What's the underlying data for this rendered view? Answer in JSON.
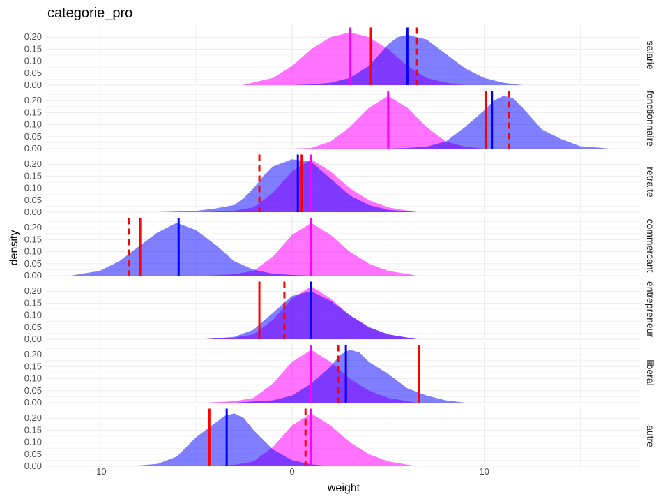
{
  "chart_data": {
    "type": "area",
    "title": "categorie_pro",
    "xlabel": "weight",
    "ylabel": "density",
    "xlim": [
      -12.8,
      18.1
    ],
    "ylim": [
      0,
      0.25
    ],
    "x_ticks": [
      -10,
      0,
      10
    ],
    "x_tick_labels": [
      "-10",
      "0",
      "10"
    ],
    "y_ticks": [
      0.0,
      0.05,
      0.1,
      0.15,
      0.2
    ],
    "y_tick_labels": [
      "0.00",
      "0.05",
      "0.10",
      "0.15",
      "0.20"
    ],
    "grid": true,
    "colors": {
      "pink": "#ff00ff",
      "blue": "#0000ff",
      "red": "#ff0000",
      "grid": "#ebebeb"
    },
    "panels": [
      {
        "label": "salarie",
        "pink_density": {
          "x": [
            -2.6,
            -1.0,
            0.0,
            1.0,
            2.0,
            3.0,
            4.0,
            5.0,
            6.0,
            7.0,
            8.0,
            9.0
          ],
          "y": [
            0.0,
            0.03,
            0.08,
            0.15,
            0.2,
            0.22,
            0.2,
            0.15,
            0.08,
            0.03,
            0.01,
            0.0
          ]
        },
        "blue_density": {
          "x": [
            0.0,
            1.0,
            2.0,
            3.0,
            4.0,
            5.0,
            5.5,
            6.0,
            6.5,
            7.0,
            7.5,
            8.0,
            9.0,
            10.0,
            11.0,
            12.0
          ],
          "y": [
            0.0,
            0.003,
            0.01,
            0.03,
            0.08,
            0.17,
            0.2,
            0.21,
            0.2,
            0.19,
            0.16,
            0.13,
            0.07,
            0.03,
            0.01,
            0.0
          ]
        },
        "pink_line": 3.0,
        "blue_line": 6.0,
        "red_solid": 4.1,
        "red_dashed": 6.5
      },
      {
        "label": "fonctionnaire",
        "pink_density": {
          "x": [
            0.0,
            1.0,
            2.0,
            3.0,
            4.0,
            5.0,
            6.0,
            7.0,
            8.0,
            9.0,
            10.0
          ],
          "y": [
            0.0,
            0.003,
            0.03,
            0.09,
            0.17,
            0.22,
            0.17,
            0.09,
            0.03,
            0.008,
            0.0
          ]
        },
        "blue_density": {
          "x": [
            5.0,
            6.0,
            7.0,
            8.0,
            9.0,
            10.0,
            10.5,
            11.0,
            11.5,
            12.0,
            13.0,
            14.0,
            15.0,
            16.0,
            16.5
          ],
          "y": [
            0.0,
            0.003,
            0.008,
            0.03,
            0.09,
            0.16,
            0.2,
            0.22,
            0.21,
            0.17,
            0.08,
            0.04,
            0.01,
            0.004,
            0.0
          ]
        },
        "pink_line": 5.0,
        "blue_line": 10.4,
        "red_solid": 10.1,
        "red_dashed": 11.3
      },
      {
        "label": "retraite",
        "pink_density": {
          "x": [
            -4.5,
            -3.0,
            -2.0,
            -1.0,
            0.0,
            1.0,
            2.0,
            3.0,
            4.0,
            5.0,
            6.5
          ],
          "y": [
            0.0,
            0.006,
            0.02,
            0.08,
            0.17,
            0.22,
            0.17,
            0.1,
            0.05,
            0.02,
            0.0
          ]
        },
        "blue_density": {
          "x": [
            -7.0,
            -5.0,
            -4.0,
            -3.0,
            -2.5,
            -2.0,
            -1.5,
            -1.0,
            0.0,
            1.0,
            2.0,
            3.0,
            4.0,
            5.0,
            6.5
          ],
          "y": [
            0.0,
            0.005,
            0.015,
            0.03,
            0.06,
            0.1,
            0.15,
            0.19,
            0.22,
            0.21,
            0.14,
            0.07,
            0.03,
            0.01,
            0.0
          ]
        },
        "pink_line": 1.0,
        "blue_line": 0.3,
        "red_solid": 0.5,
        "red_dashed": -1.7
      },
      {
        "label": "commercant",
        "pink_density": {
          "x": [
            -4.5,
            -3.0,
            -2.0,
            -1.0,
            0.0,
            1.0,
            2.0,
            3.0,
            4.0,
            5.0,
            6.5
          ],
          "y": [
            0.0,
            0.006,
            0.02,
            0.08,
            0.17,
            0.22,
            0.17,
            0.1,
            0.05,
            0.02,
            0.0
          ]
        },
        "blue_density": {
          "x": [
            -11.5,
            -10.0,
            -9.0,
            -8.0,
            -7.0,
            -6.0,
            -5.0,
            -4.0,
            -3.0,
            -2.0,
            -1.0,
            0.0,
            1.0
          ],
          "y": [
            0.0,
            0.02,
            0.06,
            0.12,
            0.18,
            0.22,
            0.19,
            0.13,
            0.06,
            0.025,
            0.008,
            0.003,
            0.0
          ]
        },
        "pink_line": 1.0,
        "blue_line": -5.9,
        "red_solid": -7.9,
        "red_dashed": -8.5
      },
      {
        "label": "entrepreneur",
        "pink_density": {
          "x": [
            -4.5,
            -3.0,
            -2.0,
            -1.0,
            0.0,
            1.0,
            2.0,
            3.0,
            4.0,
            5.0,
            6.5
          ],
          "y": [
            0.0,
            0.006,
            0.02,
            0.08,
            0.17,
            0.22,
            0.17,
            0.1,
            0.05,
            0.02,
            0.0
          ]
        },
        "blue_density": {
          "x": [
            -4.5,
            -3.0,
            -2.0,
            -1.0,
            0.0,
            1.0,
            2.0,
            3.0,
            4.0,
            5.0,
            6.5
          ],
          "y": [
            0.0,
            0.01,
            0.04,
            0.11,
            0.18,
            0.2,
            0.16,
            0.1,
            0.05,
            0.02,
            0.0
          ]
        },
        "pink_line": 1.0,
        "blue_line": 1.0,
        "red_solid": -1.7,
        "red_dashed": -0.4
      },
      {
        "label": "liberal",
        "pink_density": {
          "x": [
            -4.5,
            -3.0,
            -2.0,
            -1.0,
            0.0,
            1.0,
            2.0,
            3.0,
            4.0,
            5.0,
            6.5
          ],
          "y": [
            0.0,
            0.006,
            0.02,
            0.08,
            0.17,
            0.22,
            0.17,
            0.1,
            0.05,
            0.02,
            0.0
          ]
        },
        "blue_density": {
          "x": [
            -3.0,
            -2.0,
            -1.0,
            0.0,
            1.0,
            2.0,
            2.5,
            3.0,
            3.5,
            4.0,
            5.0,
            6.0,
            7.0,
            8.0,
            9.0
          ],
          "y": [
            0.0,
            0.005,
            0.01,
            0.03,
            0.08,
            0.15,
            0.2,
            0.22,
            0.21,
            0.17,
            0.12,
            0.06,
            0.03,
            0.01,
            0.0
          ]
        },
        "pink_line": 1.0,
        "blue_line": 2.8,
        "red_solid": 6.6,
        "red_dashed": 2.4
      },
      {
        "label": "autre",
        "pink_density": {
          "x": [
            -4.5,
            -3.0,
            -2.0,
            -1.0,
            0.0,
            1.0,
            2.0,
            3.0,
            4.0,
            5.0,
            6.5
          ],
          "y": [
            0.0,
            0.006,
            0.02,
            0.08,
            0.17,
            0.22,
            0.17,
            0.1,
            0.05,
            0.02,
            0.0
          ]
        },
        "blue_density": {
          "x": [
            -10.0,
            -8.0,
            -7.0,
            -6.0,
            -5.0,
            -4.0,
            -3.5,
            -3.0,
            -2.5,
            -2.0,
            -1.0,
            0.0,
            1.0,
            2.0
          ],
          "y": [
            0.0,
            0.003,
            0.01,
            0.04,
            0.12,
            0.18,
            0.21,
            0.22,
            0.2,
            0.15,
            0.07,
            0.025,
            0.008,
            0.0
          ]
        },
        "pink_line": 1.0,
        "blue_line": -3.4,
        "red_solid": -4.3,
        "red_dashed": 0.7
      }
    ]
  }
}
